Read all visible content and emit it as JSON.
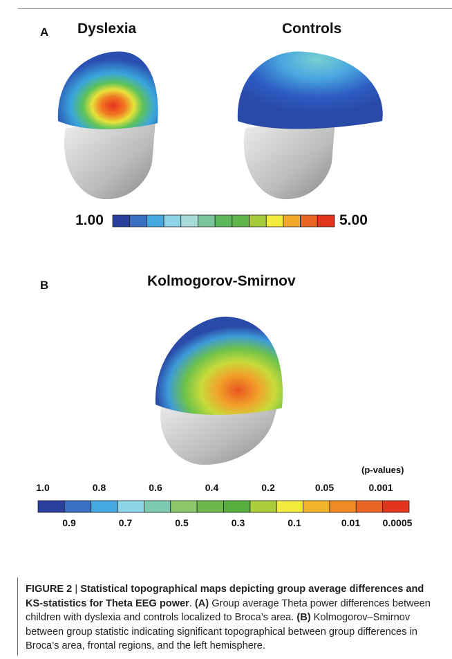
{
  "panel_a": {
    "label": "A",
    "titles": [
      "Dyslexia",
      "Controls"
    ],
    "scale_min": "1.00",
    "scale_max": "5.00"
  },
  "panel_b": {
    "label": "B",
    "title": "Kolmogorov-Smirnov",
    "unit": "(p-values)",
    "top_labels": [
      "1.0",
      "0.8",
      "0.6",
      "0.4",
      "0.2",
      "0.05",
      "0.001"
    ],
    "bottom_labels": [
      "0.9",
      "0.7",
      "0.5",
      "0.3",
      "0.1",
      "0.01",
      "0.0005"
    ]
  },
  "caption": {
    "parts": [
      "FIGURE 2",
      " | ",
      "Statistical topographical maps depicting group average differences and KS-statistics for Theta EEG power",
      ". ",
      "(A)",
      " Group average Theta power differences between children with dyslexia and controls localized to Broca’s area. ",
      "(B)",
      " Kolmogorov–Smirnov between group statistic indicating significant topographical between group differences in Broca’s area, frontal regions, and the left hemisphere."
    ]
  }
}
